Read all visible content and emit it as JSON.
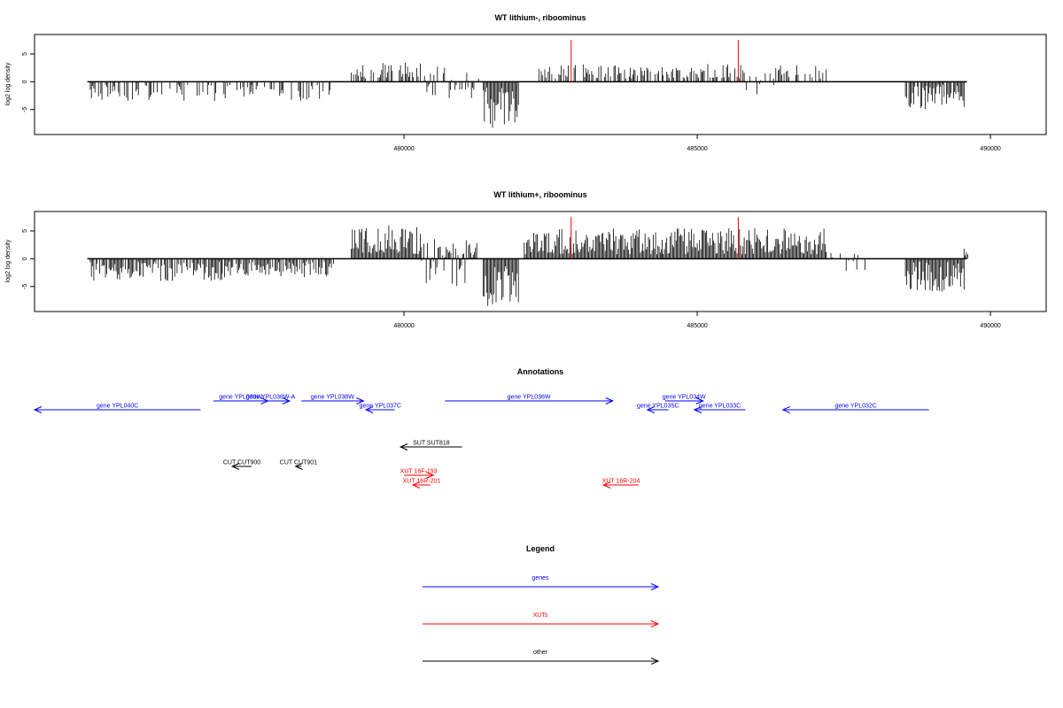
{
  "colors": {
    "gene": "#0000ff",
    "xut": "#ff0000",
    "other": "#000000",
    "frame": "#000000",
    "marker": "#ff0000"
  },
  "chart_data": [
    {
      "type": "bar",
      "title": "WT lithium-, riboominus",
      "ylabel": "log2 log density",
      "xlim": [
        473700,
        490950
      ],
      "ylim": [
        -9.5,
        8.5
      ],
      "x_ticks": [
        480000,
        485000,
        490000
      ],
      "y_ticks": [
        5,
        0,
        -5
      ],
      "baseline": {
        "x_start": 474600,
        "x_end": 489600,
        "y": 0
      },
      "markers": [
        {
          "x": 482850,
          "y": 7.5
        },
        {
          "x": 485700,
          "y": 7.5
        }
      ],
      "segments": [
        {
          "start": 474650,
          "end": 477400,
          "min": -3.5,
          "max": -0.5,
          "density": 0.45,
          "seed": 11
        },
        {
          "start": 477400,
          "end": 478800,
          "min": -3.5,
          "max": -0.5,
          "density": 0.35,
          "seed": 12
        },
        {
          "start": 479100,
          "end": 480300,
          "min": 0.6,
          "max": 3.5,
          "density": 0.7,
          "seed": 13
        },
        {
          "start": 480350,
          "end": 481300,
          "min": -3.2,
          "max": 3.2,
          "density": 0.45,
          "seed": 14
        },
        {
          "start": 481350,
          "end": 481950,
          "min": -8.5,
          "max": -1.0,
          "density": 1.0,
          "seed": 15
        },
        {
          "start": 482300,
          "end": 484400,
          "min": 0.6,
          "max": 3.2,
          "density": 0.55,
          "seed": 16
        },
        {
          "start": 484400,
          "end": 485800,
          "min": 0.6,
          "max": 3.2,
          "density": 0.65,
          "seed": 17
        },
        {
          "start": 485800,
          "end": 486300,
          "min": -2.5,
          "max": 2.5,
          "density": 0.4,
          "seed": 18
        },
        {
          "start": 486300,
          "end": 487200,
          "min": 0.6,
          "max": 3.0,
          "density": 0.45,
          "seed": 19
        },
        {
          "start": 488550,
          "end": 489550,
          "min": -5.0,
          "max": -0.5,
          "density": 0.9,
          "seed": 20
        }
      ]
    },
    {
      "type": "bar",
      "title": "WT lithium+, riboominus",
      "ylabel": "log2 log density",
      "xlim": [
        473700,
        490950
      ],
      "ylim": [
        -9.5,
        8.5
      ],
      "x_ticks": [
        480000,
        485000,
        490000
      ],
      "y_ticks": [
        5,
        0,
        -5
      ],
      "baseline": {
        "x_start": 474600,
        "x_end": 489600,
        "y": 0
      },
      "markers": [
        {
          "x": 482850,
          "y": 7.5
        },
        {
          "x": 485700,
          "y": 7.5
        }
      ],
      "segments": [
        {
          "start": 474650,
          "end": 476900,
          "min": -4.0,
          "max": -0.5,
          "density": 0.85,
          "seed": 31
        },
        {
          "start": 476900,
          "end": 478800,
          "min": -3.5,
          "max": -0.5,
          "density": 0.8,
          "seed": 32
        },
        {
          "start": 479100,
          "end": 480300,
          "min": 0.8,
          "max": 6.0,
          "density": 1.0,
          "seed": 33
        },
        {
          "start": 480300,
          "end": 481250,
          "min": -6.0,
          "max": 3.5,
          "density": 1.0,
          "seed": 34
        },
        {
          "start": 481350,
          "end": 481950,
          "min": -8.5,
          "max": -1.0,
          "density": 1.0,
          "seed": 35
        },
        {
          "start": 482050,
          "end": 484400,
          "min": 0.8,
          "max": 5.5,
          "density": 1.0,
          "seed": 36
        },
        {
          "start": 484400,
          "end": 487200,
          "min": 0.8,
          "max": 5.5,
          "density": 1.0,
          "seed": 37
        },
        {
          "start": 487200,
          "end": 487900,
          "min": -2.5,
          "max": 1.5,
          "density": 0.3,
          "seed": 38
        },
        {
          "start": 488550,
          "end": 489550,
          "min": -6.0,
          "max": -0.5,
          "density": 1.0,
          "seed": 39
        },
        {
          "start": 489550,
          "end": 489650,
          "min": 0.5,
          "max": 2.0,
          "density": 0.8,
          "seed": 40
        }
      ]
    }
  ],
  "annotations": {
    "title": "Annotations",
    "xlim": [
      473700,
      490950
    ],
    "features": [
      {
        "label": "gene YPL040C",
        "kind": "gene",
        "start": 473700,
        "end": 476530,
        "strand": "-",
        "row": 1
      },
      {
        "label": "gene YPL039W",
        "kind": "gene",
        "start": 476750,
        "end": 477680,
        "strand": "+",
        "row": 0
      },
      {
        "label": "gene YPL038W-A",
        "kind": "gene",
        "start": 477400,
        "end": 478050,
        "strand": "+",
        "row": 0
      },
      {
        "label": "gene YPL038W",
        "kind": "gene",
        "start": 478250,
        "end": 479310,
        "strand": "+",
        "row": 0
      },
      {
        "label": "gene YPL037C",
        "kind": "gene",
        "start": 479350,
        "end": 479840,
        "strand": "-",
        "row": 1
      },
      {
        "label": "gene YPL036W",
        "kind": "gene",
        "start": 480700,
        "end": 483560,
        "strand": "+",
        "row": 0
      },
      {
        "label": "gene YPL034W",
        "kind": "gene",
        "start": 484450,
        "end": 485100,
        "strand": "+",
        "row": 0
      },
      {
        "label": "gene YPL035C",
        "kind": "gene",
        "start": 484150,
        "end": 484510,
        "strand": "-",
        "row": 1
      },
      {
        "label": "gene YPL033C",
        "kind": "gene",
        "start": 484950,
        "end": 485820,
        "strand": "-",
        "row": 1
      },
      {
        "label": "gene YPL032C",
        "kind": "gene",
        "start": 486460,
        "end": 488950,
        "strand": "-",
        "row": 1
      },
      {
        "label": "SUT SUT818",
        "kind": "other",
        "start": 479940,
        "end": 480990,
        "strand": "-",
        "row": 2
      },
      {
        "label": "CUT CUT900",
        "kind": "other",
        "start": 477070,
        "end": 477400,
        "strand": "-",
        "row": 3
      },
      {
        "label": "CUT CUT901",
        "kind": "other",
        "start": 478150,
        "end": 478250,
        "strand": "-",
        "row": 3
      },
      {
        "label": "XUT 16F-193",
        "kind": "xut",
        "start": 480000,
        "end": 480500,
        "strand": "+",
        "row": 4
      },
      {
        "label": "XUT 16R-201",
        "kind": "xut",
        "start": 480150,
        "end": 480450,
        "strand": "-",
        "row": 5
      },
      {
        "label": "XUT 16R-204",
        "kind": "xut",
        "start": 483400,
        "end": 484000,
        "strand": "-",
        "row": 5
      }
    ]
  },
  "legend": {
    "title": "Legend",
    "items": [
      {
        "label": "genes",
        "kind": "gene"
      },
      {
        "label": "XUTs",
        "kind": "xut"
      },
      {
        "label": "other",
        "kind": "other"
      }
    ]
  }
}
